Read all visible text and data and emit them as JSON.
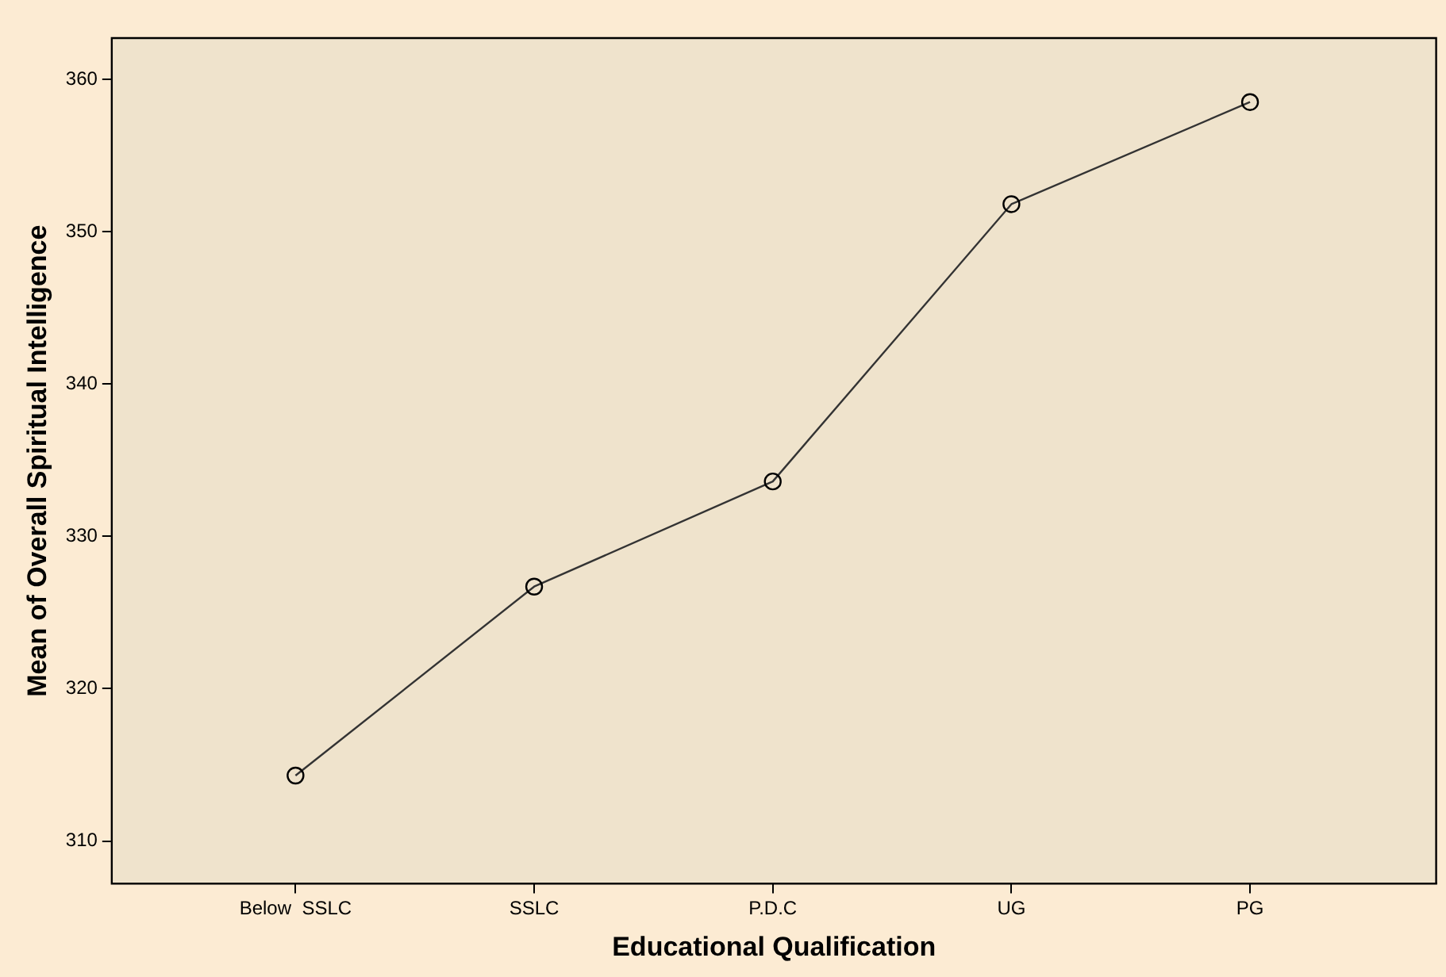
{
  "chart_data": {
    "type": "line",
    "xlabel": "Educational Qualification",
    "ylabel": "Mean of Overall Spiritual Intelligence",
    "categories": [
      "Below  SSLC",
      "SSLC",
      "P.D.C",
      "UG",
      "PG"
    ],
    "series": [
      {
        "color": "#333333",
        "values": [
          314.3,
          326.7,
          333.6,
          351.8,
          358.5
        ]
      }
    ],
    "ylim": [
      307.2,
      362.7
    ],
    "yticks": [
      310,
      320,
      330,
      340,
      350,
      360
    ],
    "grid": false,
    "legend": false,
    "marker": "circle",
    "line_style": "solid"
  }
}
